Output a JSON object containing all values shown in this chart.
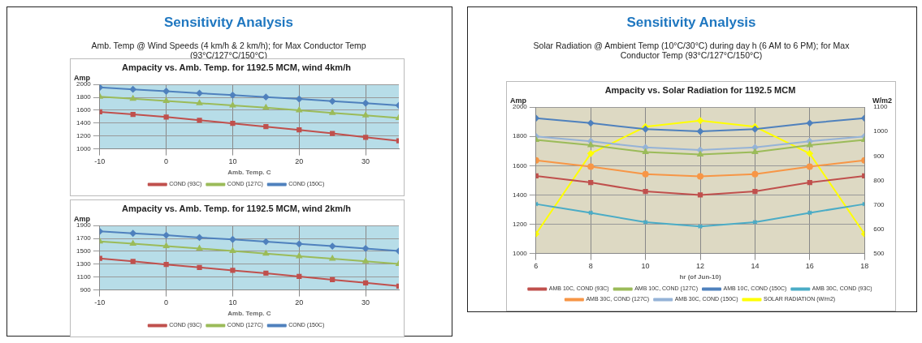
{
  "chart_data": [
    {
      "type": "other",
      "title": "Sensitivity Analysis",
      "subtitle": "Amb. Temp @ Wind Speeds (4 km/h & 2 km/h); for Max Conductor Temp (93°C/127°C/150°C)"
    },
    {
      "type": "line",
      "title": "Ampacity vs. Amb. Temp. for 1192.5 MCM, wind 4km/h",
      "xlabel": "Amb. Temp. C",
      "ylabel": "Amp",
      "x": [
        -10,
        -5,
        0,
        5,
        10,
        15,
        20,
        25,
        30,
        35
      ],
      "xlim": [
        -10,
        35
      ],
      "xticks": [
        -10,
        0,
        10,
        20,
        30
      ],
      "ylim": [
        1000,
        2000
      ],
      "yticks": [
        1000,
        1200,
        1400,
        1600,
        1800,
        2000
      ],
      "grid": true,
      "legend": "bottom",
      "series": [
        {
          "name": "COND (93C)",
          "color": "#c0504d",
          "marker": "square",
          "values": [
            1575,
            1535,
            1495,
            1445,
            1395,
            1345,
            1295,
            1240,
            1180,
            1125
          ]
        },
        {
          "name": "COND (127C)",
          "color": "#9bbb59",
          "marker": "triangle",
          "values": [
            1810,
            1780,
            1745,
            1710,
            1675,
            1640,
            1600,
            1560,
            1520,
            1480
          ]
        },
        {
          "name": "COND (150C)",
          "color": "#4f81bd",
          "marker": "diamond",
          "values": [
            1955,
            1925,
            1895,
            1865,
            1835,
            1805,
            1775,
            1740,
            1710,
            1675
          ]
        }
      ]
    },
    {
      "type": "line",
      "title": "Ampacity vs. Amb. Temp. for 1192.5 MCM, wind 2km/h",
      "xlabel": "Amb. Temp. C",
      "ylabel": "Amp",
      "x": [
        -10,
        -5,
        0,
        5,
        10,
        15,
        20,
        25,
        30,
        35
      ],
      "xlim": [
        -10,
        35
      ],
      "xticks": [
        -10,
        0,
        10,
        20,
        30
      ],
      "ylim": [
        900,
        1900
      ],
      "yticks": [
        900,
        1100,
        1300,
        1500,
        1700,
        1900
      ],
      "grid": true,
      "legend": "bottom",
      "series": [
        {
          "name": "COND (93C)",
          "color": "#c0504d",
          "marker": "square",
          "values": [
            1390,
            1345,
            1295,
            1250,
            1205,
            1160,
            1110,
            1060,
            1010,
            960
          ]
        },
        {
          "name": "COND (127C)",
          "color": "#9bbb59",
          "marker": "triangle",
          "values": [
            1655,
            1620,
            1580,
            1545,
            1505,
            1465,
            1425,
            1385,
            1345,
            1305
          ]
        },
        {
          "name": "COND (150C)",
          "color": "#4f81bd",
          "marker": "diamond",
          "values": [
            1810,
            1780,
            1750,
            1715,
            1685,
            1650,
            1615,
            1580,
            1545,
            1505
          ]
        }
      ]
    },
    {
      "type": "other",
      "title": "Sensitivity Analysis",
      "subtitle": "Solar Radiation @ Ambient Temp (10°C/30°C) during day h (6 AM to 6 PM); for Max Conductor Temp (93°C/127°C/150°C)"
    },
    {
      "type": "line",
      "title": "Ampacity vs. Solar Radiation for 1192.5 MCM",
      "xlabel": "hr (of Jun-10)",
      "ylabel": "Amp",
      "y2label": "W/m2",
      "x": [
        6,
        8,
        10,
        12,
        14,
        16,
        18
      ],
      "xlim": [
        6,
        18
      ],
      "xticks": [
        6,
        8,
        10,
        12,
        14,
        16,
        18
      ],
      "ylim": [
        1000,
        2000
      ],
      "yticks": [
        1000,
        1200,
        1400,
        1600,
        1800,
        2000
      ],
      "y2lim": [
        500,
        1100
      ],
      "y2ticks": [
        500,
        600,
        700,
        800,
        900,
        1000,
        1100
      ],
      "grid": true,
      "legend": "bottom",
      "series": [
        {
          "name": "AMB 10C, COND (93C)",
          "color": "#c0504d",
          "marker": "square",
          "values": [
            1530,
            1485,
            1424,
            1400,
            1424,
            1485,
            1530
          ]
        },
        {
          "name": "AMB 10C, COND (127C)",
          "color": "#9bbb59",
          "marker": "triangle",
          "values": [
            1777,
            1740,
            1693,
            1677,
            1693,
            1740,
            1777
          ]
        },
        {
          "name": "AMB 10C, COND (150C)",
          "color": "#4f81bd",
          "marker": "diamond",
          "values": [
            1925,
            1891,
            1850,
            1835,
            1850,
            1891,
            1925
          ]
        },
        {
          "name": "AMB 30C, COND (93C)",
          "color": "#4bacc6",
          "marker": "cross",
          "values": [
            1338,
            1278,
            1214,
            1185,
            1214,
            1278,
            1338
          ]
        },
        {
          "name": "AMB 30C, COND (127C)",
          "color": "#f79646",
          "marker": "circle",
          "values": [
            1636,
            1594,
            1542,
            1527,
            1542,
            1594,
            1636
          ]
        },
        {
          "name": "AMB 30C, COND (150C)",
          "color": "#95b3d7",
          "marker": "diamond",
          "values": [
            1800,
            1767,
            1725,
            1707,
            1725,
            1767,
            1800
          ]
        },
        {
          "name": "SOLAR RADIATION (W/m2)",
          "color": "#ffff00",
          "marker": "diamond",
          "axis": "y2",
          "values": [
            580,
            910,
            1020,
            1045,
            1020,
            910,
            580
          ]
        }
      ]
    }
  ]
}
